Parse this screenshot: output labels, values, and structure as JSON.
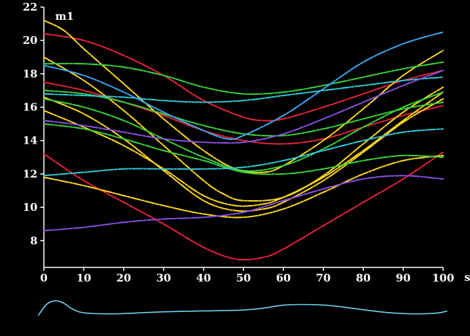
{
  "chart_data": {
    "type": "line",
    "title": "m1",
    "xlabel": "s",
    "ylabel": "",
    "xlim": [
      0,
      100
    ],
    "ylim": [
      6.4,
      22
    ],
    "x_ticks": [
      0,
      10,
      20,
      30,
      40,
      50,
      60,
      70,
      80,
      90,
      100
    ],
    "y_ticks": [
      8,
      10,
      12,
      14,
      16,
      18,
      20,
      22
    ],
    "grid": false,
    "background": "#000000",
    "series": [
      {
        "color": "#e8243c",
        "x": [
          0,
          10,
          20,
          30,
          40,
          48,
          55,
          60,
          70,
          80,
          90,
          100
        ],
        "values": [
          13.2,
          11.6,
          10.3,
          9.0,
          7.6,
          6.9,
          7.0,
          7.5,
          8.9,
          10.3,
          11.7,
          13.3
        ]
      },
      {
        "color": "#e8243c",
        "x": [
          0,
          10,
          20,
          30,
          40,
          50,
          55,
          60,
          70,
          80,
          90,
          100
        ],
        "values": [
          20.4,
          20.0,
          19.1,
          17.9,
          16.4,
          15.4,
          15.2,
          15.3,
          16.0,
          16.8,
          17.6,
          18.2
        ]
      },
      {
        "color": "#e8243c",
        "x": [
          0,
          10,
          20,
          30,
          40,
          50,
          60,
          70,
          80,
          90,
          100
        ],
        "values": [
          17.5,
          17.0,
          16.3,
          15.5,
          14.6,
          14.0,
          13.8,
          14.1,
          14.8,
          15.5,
          16.1
        ]
      },
      {
        "color": "#ffd820",
        "x": [
          0,
          5,
          10,
          20,
          30,
          40,
          48,
          55,
          60,
          70,
          80,
          90,
          100
        ],
        "values": [
          21.2,
          20.6,
          19.5,
          17.4,
          15.3,
          13.4,
          12.3,
          12.1,
          12.5,
          14.0,
          15.9,
          17.9,
          19.4
        ]
      },
      {
        "color": "#ffd820",
        "x": [
          0,
          10,
          20,
          30,
          40,
          45,
          50,
          60,
          70,
          80,
          90,
          100
        ],
        "values": [
          19.0,
          17.6,
          15.8,
          13.7,
          11.6,
          10.8,
          10.4,
          10.6,
          11.9,
          13.8,
          15.7,
          17.2
        ]
      },
      {
        "color": "#ffd820",
        "x": [
          0,
          10,
          20,
          30,
          40,
          48,
          55,
          60,
          70,
          80,
          90,
          100
        ],
        "values": [
          16.6,
          15.6,
          14.1,
          12.2,
          10.4,
          9.8,
          9.9,
          10.3,
          11.6,
          13.3,
          15.1,
          16.5
        ]
      },
      {
        "color": "#ffd820",
        "x": [
          0,
          10,
          20,
          30,
          40,
          48,
          55,
          60,
          70,
          80,
          90,
          100
        ],
        "values": [
          15.8,
          14.8,
          13.7,
          12.3,
          10.7,
          10.1,
          10.2,
          10.6,
          11.8,
          13.4,
          15.2,
          16.9
        ]
      },
      {
        "color": "#ffd820",
        "x": [
          0,
          10,
          20,
          30,
          40,
          50,
          60,
          70,
          80,
          90,
          100
        ],
        "values": [
          11.8,
          11.3,
          10.7,
          10.1,
          9.6,
          9.4,
          9.9,
          10.9,
          12.0,
          12.8,
          13.1
        ]
      },
      {
        "color": "#36d43a",
        "x": [
          0,
          10,
          20,
          30,
          40,
          50,
          60,
          70,
          80,
          90,
          100
        ],
        "values": [
          18.6,
          18.6,
          18.4,
          17.9,
          17.2,
          16.8,
          16.9,
          17.3,
          17.8,
          18.3,
          18.7
        ]
      },
      {
        "color": "#36d43a",
        "x": [
          0,
          10,
          20,
          30,
          40,
          50,
          60,
          70,
          80,
          90,
          100
        ],
        "values": [
          16.5,
          16.0,
          15.2,
          14.1,
          13.0,
          12.2,
          12.5,
          13.5,
          14.8,
          16.0,
          16.9
        ]
      },
      {
        "color": "#36d43a",
        "x": [
          0,
          10,
          20,
          30,
          40,
          50,
          60,
          70,
          80,
          90,
          100
        ],
        "values": [
          15.0,
          14.7,
          14.1,
          13.4,
          12.8,
          12.1,
          12.0,
          12.3,
          12.8,
          13.1,
          13.0
        ]
      },
      {
        "color": "#36d43a",
        "x": [
          0,
          10,
          20,
          30,
          40,
          50,
          60,
          70,
          80,
          90,
          100
        ],
        "values": [
          17.0,
          16.8,
          16.3,
          15.6,
          14.9,
          14.4,
          14.3,
          14.7,
          15.3,
          15.9,
          16.3
        ]
      },
      {
        "color": "#2fc8d8",
        "x": [
          0,
          10,
          20,
          30,
          40,
          50,
          60,
          70,
          80,
          90,
          100
        ],
        "values": [
          16.8,
          16.7,
          16.6,
          16.4,
          16.3,
          16.4,
          16.7,
          17.0,
          17.3,
          17.6,
          17.8
        ]
      },
      {
        "color": "#2fc8d8",
        "x": [
          0,
          10,
          20,
          30,
          40,
          50,
          60,
          70,
          80,
          90,
          100
        ],
        "values": [
          11.9,
          12.1,
          12.3,
          12.3,
          12.3,
          12.4,
          12.8,
          13.4,
          14.0,
          14.5,
          14.7
        ]
      },
      {
        "color": "#3aa8f0",
        "x": [
          0,
          10,
          20,
          30,
          40,
          46,
          50,
          60,
          70,
          80,
          90,
          100
        ],
        "values": [
          18.5,
          17.9,
          16.9,
          15.7,
          14.6,
          14.1,
          14.3,
          15.5,
          17.1,
          18.7,
          19.8,
          20.5
        ]
      },
      {
        "color": "#8a4fe0",
        "x": [
          0,
          10,
          20,
          30,
          40,
          50,
          60,
          70,
          80,
          90,
          100
        ],
        "values": [
          15.2,
          14.9,
          14.5,
          14.1,
          13.9,
          13.9,
          14.4,
          15.3,
          16.3,
          17.3,
          18.2
        ]
      },
      {
        "color": "#8a4fe0",
        "x": [
          0,
          10,
          20,
          30,
          40,
          50,
          60,
          70,
          80,
          90,
          100
        ],
        "values": [
          8.6,
          8.8,
          9.1,
          9.3,
          9.4,
          9.7,
          10.4,
          11.1,
          11.7,
          11.9,
          11.7
        ]
      }
    ],
    "bottom_trace": {
      "color": "#6fd0f0",
      "x": [
        0,
        2,
        4,
        6,
        8,
        10,
        12,
        15,
        20,
        30,
        40,
        50,
        55,
        60,
        65,
        70,
        75,
        80,
        85,
        90,
        95,
        98,
        100
      ],
      "values": [
        0.15,
        0.75,
        0.95,
        0.85,
        0.55,
        0.35,
        0.28,
        0.25,
        0.25,
        0.35,
        0.4,
        0.45,
        0.55,
        0.72,
        0.75,
        0.72,
        0.6,
        0.45,
        0.32,
        0.25,
        0.25,
        0.3,
        0.4
      ]
    }
  }
}
